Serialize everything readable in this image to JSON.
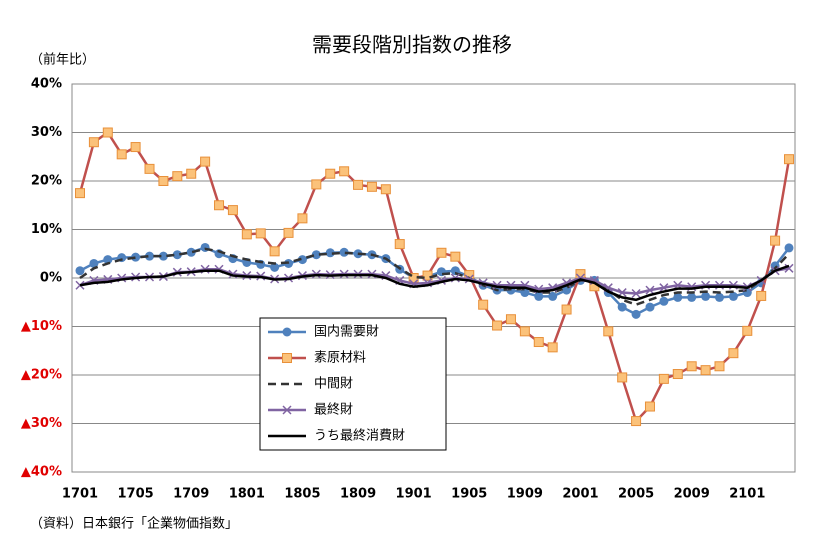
{
  "chart_data": {
    "type": "line",
    "title": "需要段階別指数の推移",
    "unit_label": "（前年比）",
    "source": "（資料）日本銀行「企業物価指数」",
    "categories": [
      "1701",
      null,
      null,
      null,
      "1705",
      null,
      null,
      null,
      "1709",
      null,
      null,
      null,
      "1801",
      null,
      null,
      null,
      "1805",
      null,
      null,
      null,
      "1809",
      null,
      null,
      null,
      "1901",
      null,
      null,
      null,
      "1905",
      null,
      null,
      null,
      "1909",
      null,
      null,
      null,
      "2001",
      null,
      null,
      null,
      "2005",
      null,
      null,
      null,
      "2009",
      null,
      null,
      null,
      "2101",
      null,
      null,
      null
    ],
    "ylim": [
      -40,
      40
    ],
    "yticks": [
      {
        "value": 40,
        "label": "40%"
      },
      {
        "value": 30,
        "label": "30%"
      },
      {
        "value": 20,
        "label": "20%"
      },
      {
        "value": 10,
        "label": "10%"
      },
      {
        "value": 0,
        "label": "0%"
      },
      {
        "value": -10,
        "label": "▲10%"
      },
      {
        "value": -20,
        "label": "▲20%"
      },
      {
        "value": -30,
        "label": "▲30%"
      },
      {
        "value": -40,
        "label": "▲40%"
      }
    ],
    "grid": true,
    "series": [
      {
        "name": "国内需要財",
        "color": "#4f81bd",
        "marker": "circle",
        "values": [
          1.5,
          3,
          3.8,
          4.2,
          4.3,
          4.5,
          4.5,
          4.8,
          5.3,
          6.3,
          5,
          4,
          3.2,
          2.8,
          2.2,
          3,
          3.8,
          4.8,
          5.2,
          5.3,
          5,
          4.8,
          4,
          1.8,
          0,
          0.3,
          1.3,
          1.5,
          0.3,
          -1.5,
          -2.5,
          -2.5,
          -3,
          -3.8,
          -3.8,
          -2.5,
          -0.5,
          -0.5,
          -3,
          -6,
          -7.5,
          -6,
          -4.8,
          -4,
          -4,
          -3.8,
          -4,
          -3.8,
          -3,
          -1,
          2.5,
          6.2
        ]
      },
      {
        "name": "素原材料",
        "color": "#c0504d",
        "marker": "square",
        "values": [
          17.5,
          28,
          30,
          25.5,
          27,
          22.5,
          20,
          21,
          21.5,
          24,
          15,
          14,
          9,
          9.2,
          5.5,
          9.3,
          12.3,
          19.3,
          21.5,
          22,
          19.2,
          18.8,
          18.3,
          7,
          0,
          0.5,
          5.2,
          4.4,
          0.6,
          -5.5,
          -9.8,
          -8.5,
          -11,
          -13.2,
          -14.3,
          -6.5,
          0.8,
          -1.7,
          -11,
          -20.5,
          -29.5,
          -26.5,
          -20.8,
          -19.8,
          -18.2,
          -19,
          -18.2,
          -15.5,
          -10.9,
          -3.7,
          7.7,
          24.5
        ]
      },
      {
        "name": "中間財",
        "color": "#333333",
        "marker": "none",
        "dashed": true,
        "values": [
          0,
          2,
          3,
          3.8,
          4.2,
          4.5,
          4.5,
          4.8,
          5.3,
          6,
          5.5,
          4.5,
          3.8,
          3.3,
          3,
          3.2,
          4,
          4.8,
          5,
          5.2,
          5,
          4.8,
          4,
          2,
          0.2,
          0,
          0.8,
          1,
          0,
          -1.5,
          -2.5,
          -2.3,
          -2.3,
          -3,
          -3,
          -2,
          -0.5,
          -0.5,
          -2.5,
          -4.5,
          -5.5,
          -4.5,
          -3.5,
          -3,
          -3,
          -2.8,
          -3,
          -2.8,
          -2.5,
          -0.5,
          2,
          5
        ]
      },
      {
        "name": "最終財",
        "color": "#8064a2",
        "marker": "x",
        "values": [
          -1.5,
          -0.5,
          -0.3,
          0,
          0.2,
          0.2,
          0.3,
          1.2,
          1.3,
          1.8,
          1.8,
          0.8,
          0.5,
          0.4,
          -0.2,
          0,
          0.5,
          0.8,
          0.7,
          0.8,
          0.8,
          0.8,
          0.5,
          -0.5,
          -1.2,
          -1,
          -0.5,
          0,
          -0.2,
          -1,
          -1.5,
          -1.5,
          -1.5,
          -2.3,
          -2,
          -1,
          0,
          -0.5,
          -2,
          -3,
          -3.2,
          -2.5,
          -2,
          -1.5,
          -1.8,
          -1.5,
          -1.5,
          -1.5,
          -1.8,
          -0.5,
          1.5,
          2
        ]
      },
      {
        "name": "うち最終消費財",
        "color": "#000000",
        "marker": "none",
        "values": [
          -1.5,
          -1,
          -0.8,
          -0.3,
          0,
          0.2,
          0.3,
          1,
          1.2,
          1.5,
          1.5,
          0.5,
          0.3,
          0.2,
          -0.3,
          -0.2,
          0.3,
          0.6,
          0.5,
          0.6,
          0.6,
          0.6,
          0,
          -1.2,
          -1.8,
          -1.5,
          -0.8,
          -0.2,
          -0.5,
          -1.2,
          -1.8,
          -2,
          -2,
          -2.8,
          -2.5,
          -1.5,
          -0.3,
          -1,
          -2.8,
          -4,
          -4.5,
          -3.5,
          -2.8,
          -2.2,
          -2.2,
          -1.8,
          -1.8,
          -1.8,
          -2,
          -0.5,
          1.5,
          2.5
        ]
      }
    ]
  }
}
